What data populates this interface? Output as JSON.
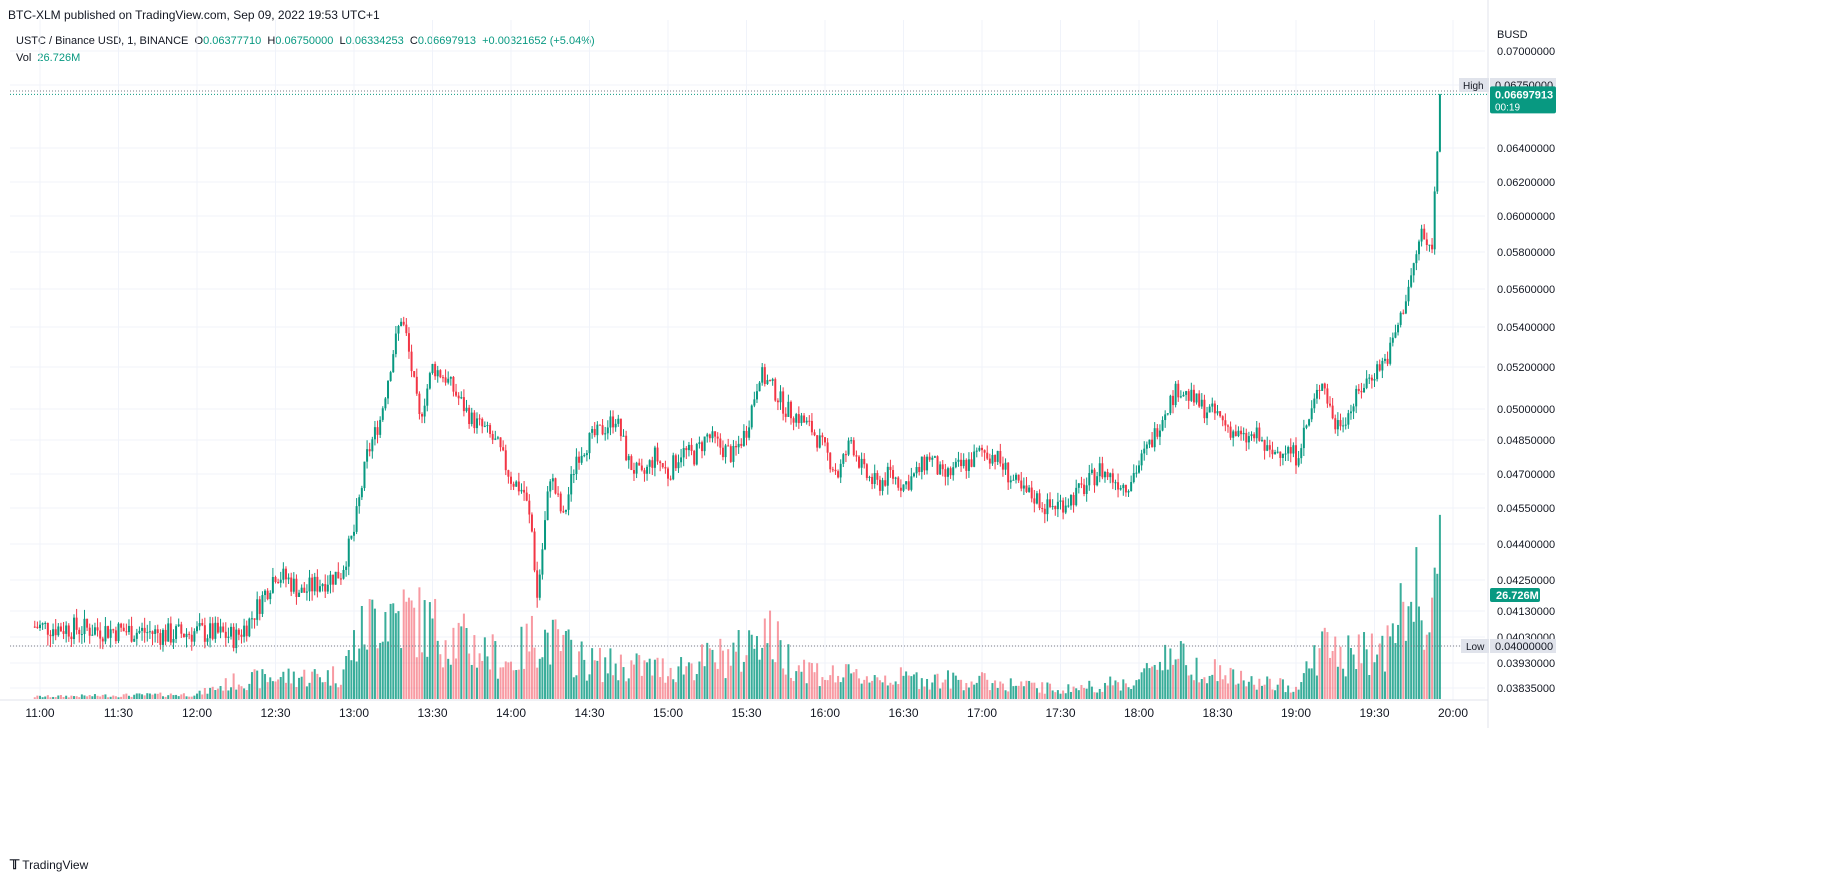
{
  "header": {
    "published": "BTC-XLM published on TradingView.com, Sep 09, 2022 19:53 UTC+1"
  },
  "legend": {
    "symbol": "USTC / Binance USD, 1, BINANCE",
    "open_label": "O",
    "open": "0.06377710",
    "high_label": "H",
    "high": "0.06750000",
    "low_label": "L",
    "low": "0.06334253",
    "close_label": "C",
    "close": "0.06697913",
    "change": "+0.00321652 (+5.04%)",
    "vol_label": "Vol",
    "vol_value": "26.726M"
  },
  "footer": {
    "brand": "TradingView"
  },
  "colors": {
    "up": "#089981",
    "down": "#F23645",
    "grid": "#F0F3FA",
    "axis_text": "#131722"
  },
  "chart_data": {
    "type": "candlestick",
    "currency": "BUSD",
    "y_ticks": [
      "0.07000000",
      "0.06750000",
      "0.06400000",
      "0.06200000",
      "0.06000000",
      "0.05800000",
      "0.05600000",
      "0.05400000",
      "0.05200000",
      "0.05000000",
      "0.04850000",
      "0.04700000",
      "0.04550000",
      "0.04400000",
      "0.04250000",
      "0.04130000",
      "0.04030000",
      "0.04000000",
      "0.03930000",
      "0.03835000"
    ],
    "x_ticks": [
      "11:00",
      "11:30",
      "12:00",
      "12:30",
      "13:00",
      "13:30",
      "14:00",
      "14:30",
      "15:00",
      "15:30",
      "16:00",
      "16:30",
      "17:00",
      "17:30",
      "18:00",
      "18:30",
      "19:00",
      "19:30",
      "20:00"
    ],
    "high_marker": {
      "label": "High",
      "value": "0.06750000"
    },
    "low_marker": {
      "label": "Low",
      "value": "0.04000000"
    },
    "last_price": {
      "value": "0.06697913",
      "countdown": "00:19"
    },
    "volume_label": "26.726M",
    "price_path": [
      [
        "10:58",
        0.0407
      ],
      [
        "11:10",
        0.04065
      ],
      [
        "11:20",
        0.0406
      ],
      [
        "11:30",
        0.04055
      ],
      [
        "11:40",
        0.0405
      ],
      [
        "11:50",
        0.0404
      ],
      [
        "12:00",
        0.0405
      ],
      [
        "12:10",
        0.0404
      ],
      [
        "12:15",
        0.0403
      ],
      [
        "12:20",
        0.0409
      ],
      [
        "12:25",
        0.0418
      ],
      [
        "12:30",
        0.0428
      ],
      [
        "12:35",
        0.0425
      ],
      [
        "12:40",
        0.042
      ],
      [
        "12:45",
        0.0423
      ],
      [
        "12:55",
        0.0428
      ],
      [
        "13:00",
        0.0445
      ],
      [
        "13:05",
        0.0478
      ],
      [
        "13:10",
        0.0495
      ],
      [
        "13:15",
        0.0528
      ],
      [
        "13:18",
        0.0545
      ],
      [
        "13:20",
        0.0535
      ],
      [
        "13:25",
        0.0495
      ],
      [
        "13:30",
        0.052
      ],
      [
        "13:35",
        0.0515
      ],
      [
        "13:40",
        0.0505
      ],
      [
        "13:45",
        0.0495
      ],
      [
        "13:50",
        0.049
      ],
      [
        "13:55",
        0.0482
      ],
      [
        "14:00",
        0.0468
      ],
      [
        "14:05",
        0.0462
      ],
      [
        "14:08",
        0.0445
      ],
      [
        "14:10",
        0.0418
      ],
      [
        "14:12",
        0.0438
      ],
      [
        "14:15",
        0.047
      ],
      [
        "14:20",
        0.045
      ],
      [
        "14:25",
        0.0478
      ],
      [
        "14:30",
        0.0485
      ],
      [
        "14:35",
        0.049
      ],
      [
        "14:40",
        0.0496
      ],
      [
        "14:45",
        0.0475
      ],
      [
        "14:50",
        0.0468
      ],
      [
        "14:55",
        0.0478
      ],
      [
        "15:00",
        0.047
      ],
      [
        "15:05",
        0.048
      ],
      [
        "15:10",
        0.0478
      ],
      [
        "15:15",
        0.0487
      ],
      [
        "15:20",
        0.0482
      ],
      [
        "15:25",
        0.0478
      ],
      [
        "15:30",
        0.049
      ],
      [
        "15:35",
        0.0517
      ],
      [
        "15:40",
        0.051
      ],
      [
        "15:45",
        0.05
      ],
      [
        "15:50",
        0.0496
      ],
      [
        "15:55",
        0.049
      ],
      [
        "16:00",
        0.048
      ],
      [
        "16:05",
        0.047
      ],
      [
        "16:10",
        0.0485
      ],
      [
        "16:15",
        0.047
      ],
      [
        "16:20",
        0.0465
      ],
      [
        "16:25",
        0.047
      ],
      [
        "16:30",
        0.0465
      ],
      [
        "16:35",
        0.047
      ],
      [
        "16:40",
        0.0478
      ],
      [
        "16:45",
        0.0468
      ],
      [
        "16:50",
        0.0472
      ],
      [
        "16:55",
        0.0475
      ],
      [
        "17:00",
        0.048
      ],
      [
        "17:05",
        0.0478
      ],
      [
        "17:10",
        0.047
      ],
      [
        "17:15",
        0.0462
      ],
      [
        "17:20",
        0.046
      ],
      [
        "17:25",
        0.0455
      ],
      [
        "17:30",
        0.0457
      ],
      [
        "17:35",
        0.046
      ],
      [
        "17:40",
        0.0465
      ],
      [
        "17:45",
        0.0472
      ],
      [
        "17:50",
        0.0468
      ],
      [
        "17:55",
        0.0465
      ],
      [
        "18:00",
        0.0474
      ],
      [
        "18:05",
        0.0485
      ],
      [
        "18:10",
        0.05
      ],
      [
        "18:15",
        0.051
      ],
      [
        "18:20",
        0.0505
      ],
      [
        "18:25",
        0.05
      ],
      [
        "18:30",
        0.0497
      ],
      [
        "18:35",
        0.049
      ],
      [
        "18:40",
        0.0485
      ],
      [
        "18:45",
        0.0487
      ],
      [
        "18:50",
        0.0478
      ],
      [
        "18:55",
        0.0482
      ],
      [
        "19:00",
        0.0478
      ],
      [
        "19:05",
        0.0495
      ],
      [
        "19:10",
        0.0515
      ],
      [
        "19:12",
        0.0505
      ],
      [
        "19:15",
        0.0492
      ],
      [
        "19:20",
        0.0498
      ],
      [
        "19:25",
        0.051
      ],
      [
        "19:30",
        0.0518
      ],
      [
        "19:35",
        0.0525
      ],
      [
        "19:40",
        0.0545
      ],
      [
        "19:45",
        0.0572
      ],
      [
        "19:48",
        0.0592
      ],
      [
        "19:50",
        0.0582
      ],
      [
        "19:52",
        0.0585
      ],
      [
        "19:54",
        0.064
      ],
      [
        "19:55",
        0.067
      ]
    ],
    "volume_path": [
      [
        "10:58",
        0.2
      ],
      [
        "12:00",
        0.4
      ],
      [
        "12:15",
        1.5
      ],
      [
        "12:30",
        1.8
      ],
      [
        "12:55",
        2.0
      ],
      [
        "13:00",
        4.5
      ],
      [
        "13:10",
        7.5
      ],
      [
        "13:20",
        7.0
      ],
      [
        "13:40",
        5.0
      ],
      [
        "14:00",
        3.0
      ],
      [
        "14:10",
        5.5
      ],
      [
        "14:30",
        3.0
      ],
      [
        "15:00",
        2.5
      ],
      [
        "15:30",
        4.0
      ],
      [
        "15:35",
        6.5
      ],
      [
        "15:45",
        3.5
      ],
      [
        "16:00",
        2.0
      ],
      [
        "17:00",
        1.5
      ],
      [
        "17:30",
        0.8
      ],
      [
        "18:00",
        1.5
      ],
      [
        "18:10",
        4.0
      ],
      [
        "18:20",
        3.0
      ],
      [
        "18:40",
        1.5
      ],
      [
        "19:00",
        1.0
      ],
      [
        "19:10",
        4.5
      ],
      [
        "19:20",
        3.5
      ],
      [
        "19:35",
        4.5
      ],
      [
        "19:45",
        9.0
      ],
      [
        "19:50",
        6.5
      ],
      [
        "19:55",
        10.5
      ]
    ]
  }
}
